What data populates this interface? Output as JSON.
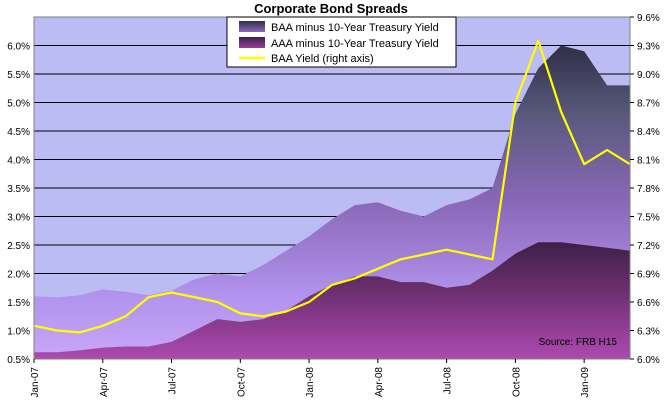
{
  "chart_data": {
    "type": "area",
    "title": "Corporate Bond Spreads",
    "source_note": "Source: FRB H15",
    "x_ticks": [
      "Jan-07",
      "Apr-07",
      "Jul-07",
      "Oct-07",
      "Jan-08",
      "Apr-08",
      "Jul-08",
      "Oct-08",
      "Jan-09"
    ],
    "y_left": {
      "ticks": [
        "0.5%",
        "1.0%",
        "1.5%",
        "2.0%",
        "2.5%",
        "3.0%",
        "3.5%",
        "4.0%",
        "4.5%",
        "5.0%",
        "5.5%",
        "6.0%"
      ],
      "min": 0.5,
      "max": 6.5
    },
    "y_right": {
      "ticks": [
        "6.0%",
        "6.3%",
        "6.6%",
        "6.9%",
        "7.2%",
        "7.5%",
        "7.8%",
        "8.1%",
        "8.4%",
        "8.7%",
        "9.0%",
        "9.3%",
        "9.6%"
      ],
      "min": 6.0,
      "max": 9.6
    },
    "grid": true,
    "legend_position": "top-center",
    "x": [
      "2007-01",
      "2007-02",
      "2007-03",
      "2007-04",
      "2007-05",
      "2007-06",
      "2007-07",
      "2007-08",
      "2007-09",
      "2007-10",
      "2007-11",
      "2007-12",
      "2008-01",
      "2008-02",
      "2008-03",
      "2008-04",
      "2008-05",
      "2008-06",
      "2008-07",
      "2008-08",
      "2008-09",
      "2008-10",
      "2008-11",
      "2008-12",
      "2009-01",
      "2009-02",
      "2009-03"
    ],
    "series": [
      {
        "name": "BAA minus 10-Year Treasury Yield",
        "axis": "left",
        "color": "#4a4568",
        "values": [
          1.6,
          1.58,
          1.62,
          1.72,
          1.68,
          1.62,
          1.7,
          1.9,
          2.0,
          1.95,
          2.15,
          2.4,
          2.65,
          2.95,
          3.2,
          3.25,
          3.1,
          3.0,
          3.2,
          3.3,
          3.5,
          4.8,
          5.6,
          6.0,
          5.9,
          5.3,
          5.3
        ]
      },
      {
        "name": "AAA minus 10-Year Treasury Yield",
        "axis": "left",
        "color": "#6e2f6a",
        "values": [
          0.62,
          0.62,
          0.65,
          0.7,
          0.72,
          0.72,
          0.8,
          1.0,
          1.2,
          1.15,
          1.2,
          1.35,
          1.6,
          1.8,
          1.95,
          1.95,
          1.85,
          1.85,
          1.75,
          1.8,
          2.05,
          2.35,
          2.55,
          2.55,
          2.5,
          2.45,
          2.4
        ]
      },
      {
        "name": "BAA Yield (right axis)",
        "axis": "right",
        "color": "#ffff00",
        "values": [
          6.35,
          6.3,
          6.28,
          6.35,
          6.45,
          6.65,
          6.7,
          6.65,
          6.6,
          6.48,
          6.45,
          6.5,
          6.6,
          6.78,
          6.85,
          6.95,
          7.05,
          7.1,
          7.15,
          7.1,
          7.05,
          8.7,
          9.35,
          8.6,
          8.05,
          8.2,
          8.05
        ]
      }
    ]
  }
}
